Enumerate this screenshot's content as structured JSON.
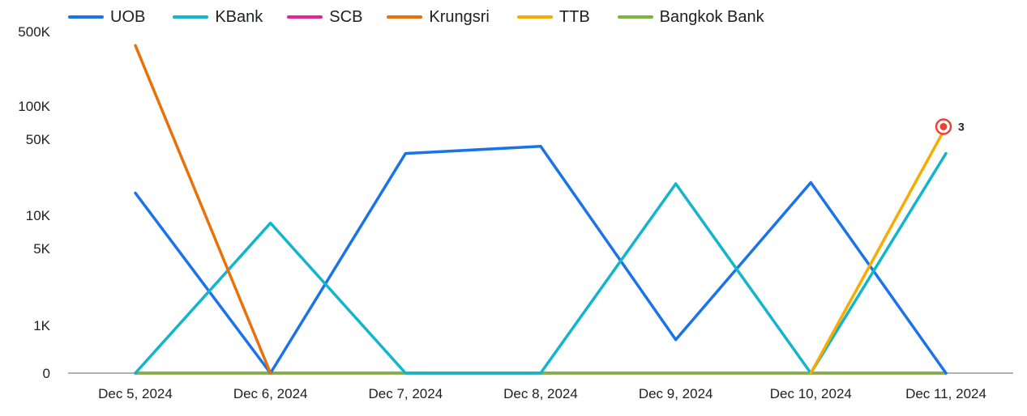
{
  "chart_data": {
    "type": "line",
    "categories": [
      "Dec 5, 2024",
      "Dec 6, 2024",
      "Dec 7, 2024",
      "Dec 8, 2024",
      "Dec 9, 2024",
      "Dec 10, 2024",
      "Dec 11, 2024"
    ],
    "y_scale": "log-like (0 baseline)",
    "y_ticks": [
      {
        "label": "0",
        "value": 0
      },
      {
        "label": "1K",
        "value": 1000
      },
      {
        "label": "5K",
        "value": 5000
      },
      {
        "label": "10K",
        "value": 10000
      },
      {
        "label": "50K",
        "value": 50000
      },
      {
        "label": "100K",
        "value": 100000
      },
      {
        "label": "500K",
        "value": 500000
      }
    ],
    "legend_position": "top",
    "series": [
      {
        "name": "UOB",
        "color": "#1a73e8",
        "values": [
          16000,
          0,
          37000,
          43000,
          700,
          20000,
          0
        ]
      },
      {
        "name": "KBank",
        "color": "#12b5cb",
        "values": [
          0,
          8500,
          0,
          0,
          19500,
          0,
          37000
        ]
      },
      {
        "name": "SCB",
        "color": "#e52592",
        "values": [
          0,
          0,
          0,
          0,
          0,
          0,
          0
        ]
      },
      {
        "name": "Krungsri",
        "color": "#e8710a",
        "values": [
          370000,
          0,
          null,
          null,
          null,
          null,
          null
        ]
      },
      {
        "name": "TTB",
        "color": "#f9ab00",
        "values": [
          null,
          null,
          null,
          null,
          null,
          0,
          65000
        ]
      },
      {
        "name": "Bangkok Bank",
        "color": "#7cb342",
        "values": [
          0,
          0,
          0,
          0,
          0,
          0,
          0
        ]
      }
    ],
    "annotation": {
      "label": "3",
      "series": "TTB",
      "category": "Dec 11, 2024"
    }
  }
}
